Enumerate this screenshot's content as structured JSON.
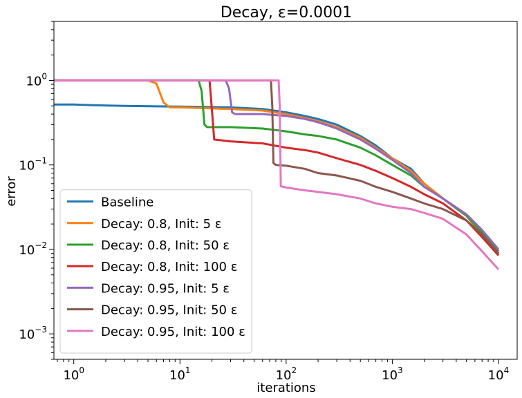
{
  "chart_data": {
    "type": "line",
    "title": "Decay, ε=0.0001",
    "xlabel": "iterations",
    "ylabel": "error",
    "xscale": "log",
    "yscale": "log",
    "xlim": [
      0.65,
      15000
    ],
    "ylim": [
      0.0005,
      5
    ],
    "grid": false,
    "legend_position": "lower-left",
    "x_ticks": [
      {
        "value": 1,
        "base": "10",
        "exp": "0"
      },
      {
        "value": 10,
        "base": "10",
        "exp": "1"
      },
      {
        "value": 100,
        "base": "10",
        "exp": "2"
      },
      {
        "value": 1000,
        "base": "10",
        "exp": "3"
      },
      {
        "value": 10000,
        "base": "10",
        "exp": "4"
      }
    ],
    "y_ticks": [
      {
        "value": 0.001,
        "base": "10",
        "exp": "−3"
      },
      {
        "value": 0.01,
        "base": "10",
        "exp": "−2"
      },
      {
        "value": 0.1,
        "base": "10",
        "exp": "−1"
      },
      {
        "value": 1,
        "base": "10",
        "exp": "0"
      }
    ],
    "series": [
      {
        "name": "Baseline",
        "color": "#1f77b4",
        "points": [
          [
            0.65,
            0.52
          ],
          [
            1,
            0.52
          ],
          [
            1.5,
            0.51
          ],
          [
            3,
            0.5
          ],
          [
            10,
            0.49
          ],
          [
            30,
            0.48
          ],
          [
            60,
            0.46
          ],
          [
            100,
            0.42
          ],
          [
            150,
            0.38
          ],
          [
            200,
            0.35
          ],
          [
            300,
            0.3
          ],
          [
            500,
            0.22
          ],
          [
            700,
            0.17
          ],
          [
            1000,
            0.12
          ],
          [
            1500,
            0.09
          ],
          [
            2000,
            0.06
          ],
          [
            3000,
            0.04
          ],
          [
            5000,
            0.025
          ],
          [
            7000,
            0.016
          ],
          [
            10000,
            0.0095
          ]
        ]
      },
      {
        "name": "Decay: 0.8, Init: 5 ε",
        "color": "#ff7f0e",
        "points": [
          [
            0.65,
            1.0
          ],
          [
            5,
            1.0
          ],
          [
            6,
            0.92
          ],
          [
            7,
            0.55
          ],
          [
            8,
            0.48
          ],
          [
            10,
            0.48
          ],
          [
            30,
            0.46
          ],
          [
            60,
            0.44
          ],
          [
            100,
            0.4
          ],
          [
            150,
            0.36
          ],
          [
            200,
            0.33
          ],
          [
            300,
            0.28
          ],
          [
            500,
            0.21
          ],
          [
            700,
            0.16
          ],
          [
            1000,
            0.12
          ],
          [
            1500,
            0.085
          ],
          [
            2000,
            0.06
          ],
          [
            3000,
            0.04
          ],
          [
            5000,
            0.025
          ],
          [
            7000,
            0.015
          ],
          [
            10000,
            0.0088
          ]
        ]
      },
      {
        "name": "Decay: 0.8, Init: 50 ε",
        "color": "#2ca02c",
        "points": [
          [
            0.65,
            1.0
          ],
          [
            15,
            1.0
          ],
          [
            16,
            0.75
          ],
          [
            17,
            0.3
          ],
          [
            18,
            0.28
          ],
          [
            30,
            0.28
          ],
          [
            60,
            0.27
          ],
          [
            100,
            0.25
          ],
          [
            150,
            0.23
          ],
          [
            200,
            0.22
          ],
          [
            300,
            0.2
          ],
          [
            500,
            0.16
          ],
          [
            700,
            0.13
          ],
          [
            1000,
            0.1
          ],
          [
            1500,
            0.075
          ],
          [
            2000,
            0.055
          ],
          [
            3000,
            0.04
          ],
          [
            5000,
            0.025
          ],
          [
            7000,
            0.016
          ],
          [
            10000,
            0.0095
          ]
        ]
      },
      {
        "name": "Decay: 0.8, Init: 100 ε",
        "color": "#d62728",
        "points": [
          [
            0.65,
            1.0
          ],
          [
            19,
            1.0
          ],
          [
            20,
            0.45
          ],
          [
            21,
            0.2
          ],
          [
            30,
            0.19
          ],
          [
            60,
            0.18
          ],
          [
            100,
            0.16
          ],
          [
            150,
            0.15
          ],
          [
            200,
            0.14
          ],
          [
            300,
            0.12
          ],
          [
            500,
            0.1
          ],
          [
            700,
            0.085
          ],
          [
            1000,
            0.07
          ],
          [
            1500,
            0.055
          ],
          [
            2000,
            0.045
          ],
          [
            3000,
            0.035
          ],
          [
            5000,
            0.022
          ],
          [
            7000,
            0.014
          ],
          [
            10000,
            0.0085
          ]
        ]
      },
      {
        "name": "Decay: 0.95, Init: 5 ε",
        "color": "#9467bd",
        "points": [
          [
            0.65,
            1.0
          ],
          [
            27,
            1.0
          ],
          [
            29,
            0.8
          ],
          [
            31,
            0.42
          ],
          [
            33,
            0.4
          ],
          [
            60,
            0.4
          ],
          [
            100,
            0.38
          ],
          [
            150,
            0.35
          ],
          [
            200,
            0.32
          ],
          [
            300,
            0.27
          ],
          [
            500,
            0.2
          ],
          [
            700,
            0.155
          ],
          [
            1000,
            0.115
          ],
          [
            1500,
            0.08
          ],
          [
            2000,
            0.055
          ],
          [
            3000,
            0.04
          ],
          [
            5000,
            0.026
          ],
          [
            7000,
            0.017
          ],
          [
            10000,
            0.01
          ]
        ]
      },
      {
        "name": "Decay: 0.95, Init: 50 ε",
        "color": "#8c564b",
        "points": [
          [
            0.65,
            1.0
          ],
          [
            72,
            1.0
          ],
          [
            74,
            0.5
          ],
          [
            76,
            0.105
          ],
          [
            80,
            0.1
          ],
          [
            100,
            0.098
          ],
          [
            150,
            0.09
          ],
          [
            200,
            0.08
          ],
          [
            300,
            0.075
          ],
          [
            500,
            0.065
          ],
          [
            700,
            0.055
          ],
          [
            1000,
            0.048
          ],
          [
            1500,
            0.04
          ],
          [
            2000,
            0.035
          ],
          [
            3000,
            0.03
          ],
          [
            5000,
            0.022
          ],
          [
            7000,
            0.015
          ],
          [
            10000,
            0.009
          ]
        ]
      },
      {
        "name": "Decay: 0.95, Init: 100 ε",
        "color": "#e377c2",
        "points": [
          [
            0.65,
            1.0
          ],
          [
            85,
            1.0
          ],
          [
            87,
            0.5
          ],
          [
            89,
            0.056
          ],
          [
            100,
            0.054
          ],
          [
            150,
            0.05
          ],
          [
            200,
            0.048
          ],
          [
            300,
            0.045
          ],
          [
            500,
            0.04
          ],
          [
            700,
            0.035
          ],
          [
            1000,
            0.032
          ],
          [
            1500,
            0.03
          ],
          [
            2000,
            0.027
          ],
          [
            3000,
            0.023
          ],
          [
            5000,
            0.015
          ],
          [
            7000,
            0.0095
          ],
          [
            10000,
            0.0058
          ]
        ]
      }
    ]
  }
}
